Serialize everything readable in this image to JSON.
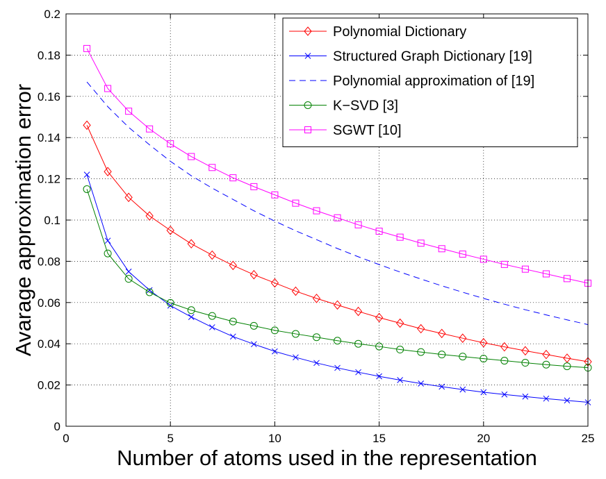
{
  "chart_data": {
    "type": "line",
    "title": "",
    "xlabel": "Number of atoms used in the representation",
    "ylabel": "Avarage approximation error",
    "xlim": [
      0,
      25
    ],
    "ylim": [
      0,
      0.2
    ],
    "xticks": [
      0,
      5,
      10,
      15,
      20,
      25
    ],
    "yticks": [
      0,
      0.02,
      0.04,
      0.06,
      0.08,
      0.1,
      0.12,
      0.14,
      0.16,
      0.18,
      0.2
    ],
    "grid": true,
    "legend_position": "top-right",
    "x": [
      1,
      2,
      3,
      4,
      5,
      6,
      7,
      8,
      9,
      10,
      11,
      12,
      13,
      14,
      15,
      16,
      17,
      18,
      19,
      20,
      21,
      22,
      23,
      24,
      25
    ],
    "series": [
      {
        "name": "Polynomial Dictionary",
        "color": "#ff0000",
        "marker": "diamond",
        "dash": false,
        "values": [
          0.146,
          0.1235,
          0.111,
          0.102,
          0.095,
          0.0885,
          0.083,
          0.078,
          0.0735,
          0.0695,
          0.0655,
          0.062,
          0.0588,
          0.0557,
          0.0527,
          0.05,
          0.0473,
          0.045,
          0.0427,
          0.0405,
          0.0385,
          0.0366,
          0.0348,
          0.033,
          0.0313
        ]
      },
      {
        "name": "Structured Graph Dictionary [19]",
        "color": "#0000ff",
        "marker": "x",
        "dash": false,
        "values": [
          0.122,
          0.09,
          0.075,
          0.066,
          0.0585,
          0.053,
          0.048,
          0.0435,
          0.0398,
          0.0363,
          0.0334,
          0.0307,
          0.0283,
          0.0262,
          0.0242,
          0.0224,
          0.0207,
          0.0192,
          0.0178,
          0.0165,
          0.0154,
          0.0144,
          0.0134,
          0.0125,
          0.0116
        ]
      },
      {
        "name": "Polynomial approximation of [19]",
        "color": "#0000ff",
        "marker": "none",
        "dash": true,
        "values": [
          0.167,
          0.155,
          0.145,
          0.1365,
          0.1285,
          0.1215,
          0.1155,
          0.11,
          0.1045,
          0.0995,
          0.0948,
          0.0905,
          0.0862,
          0.0822,
          0.0784,
          0.0748,
          0.0714,
          0.0681,
          0.065,
          0.062,
          0.0592,
          0.0565,
          0.054,
          0.0516,
          0.0493
        ]
      },
      {
        "name": "K−SVD [3]",
        "color": "#008000",
        "marker": "circle",
        "dash": false,
        "values": [
          0.115,
          0.0838,
          0.0715,
          0.065,
          0.0598,
          0.0563,
          0.0535,
          0.0508,
          0.0487,
          0.0465,
          0.0448,
          0.0432,
          0.0415,
          0.04,
          0.0387,
          0.0372,
          0.036,
          0.0348,
          0.0338,
          0.0328,
          0.0318,
          0.0308,
          0.0299,
          0.0291,
          0.0284
        ]
      },
      {
        "name": "SGWT [10]",
        "color": "#ff00ff",
        "marker": "square",
        "dash": false,
        "values": [
          0.1832,
          0.1638,
          0.1528,
          0.1442,
          0.137,
          0.1308,
          0.1255,
          0.1205,
          0.1162,
          0.1122,
          0.1082,
          0.1045,
          0.1011,
          0.0977,
          0.0946,
          0.0917,
          0.0888,
          0.0861,
          0.0835,
          0.081,
          0.0785,
          0.0762,
          0.0739,
          0.0716,
          0.0694
        ]
      }
    ]
  }
}
